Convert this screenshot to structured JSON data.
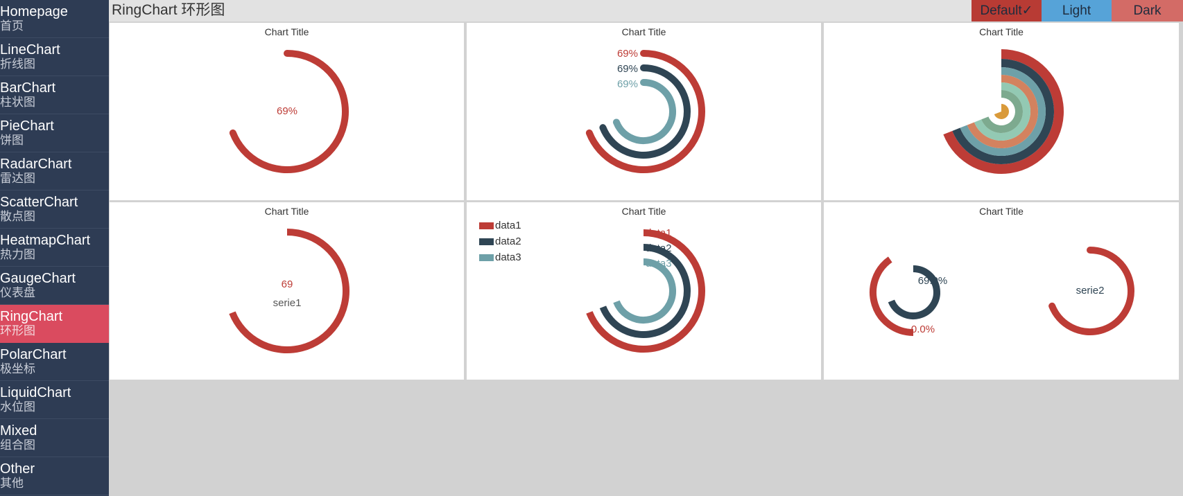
{
  "sidebar": {
    "items": [
      {
        "en": "Homepage",
        "cn": "首页"
      },
      {
        "en": "LineChart",
        "cn": "折线图"
      },
      {
        "en": "BarChart",
        "cn": "柱状图"
      },
      {
        "en": "PieChart",
        "cn": "饼图"
      },
      {
        "en": "RadarChart",
        "cn": "雷达图"
      },
      {
        "en": "ScatterChart",
        "cn": "散点图"
      },
      {
        "en": "HeatmapChart",
        "cn": "热力图"
      },
      {
        "en": "GaugeChart",
        "cn": "仪表盘"
      },
      {
        "en": "RingChart",
        "cn": "环形图"
      },
      {
        "en": "PolarChart",
        "cn": "极坐标"
      },
      {
        "en": "LiquidChart",
        "cn": "水位图"
      },
      {
        "en": "Mixed",
        "cn": "组合图"
      },
      {
        "en": "Other",
        "cn": "其他"
      }
    ],
    "active_index": 8
  },
  "header": {
    "title": "RingChart 环形图",
    "themes": [
      {
        "label": "Default✓",
        "color": "#b83b34",
        "selected": true
      },
      {
        "label": "Light",
        "color": "#56a3d8",
        "selected": false
      },
      {
        "label": "Dark",
        "color": "#d36b66",
        "selected": false
      }
    ]
  },
  "colors": {
    "red": "#bd3c36",
    "navy": "#2f4554",
    "teal": "#6ea0a8",
    "orange": "#d3825f",
    "mint": "#93c9b3",
    "sage": "#7daa8f",
    "gold": "#d99a3a"
  },
  "chart_data": [
    {
      "type": "ring",
      "title": "Chart Title",
      "series": [
        {
          "value": 69,
          "max": 100
        }
      ],
      "center_label": "69%"
    },
    {
      "type": "ring",
      "title": "Chart Title",
      "series": [
        {
          "value": 69,
          "max": 100,
          "label": "69%"
        },
        {
          "value": 69,
          "max": 100,
          "label": "69%"
        },
        {
          "value": 69,
          "max": 100,
          "label": "69%"
        }
      ]
    },
    {
      "type": "ring",
      "title": "Chart Title",
      "series": [
        {
          "value": 69,
          "max": 100
        },
        {
          "value": 69,
          "max": 100
        },
        {
          "value": 69,
          "max": 100
        },
        {
          "value": 69,
          "max": 100
        },
        {
          "value": 69,
          "max": 100
        },
        {
          "value": 69,
          "max": 100
        },
        {
          "value": 69,
          "max": 100
        }
      ]
    },
    {
      "type": "ring",
      "title": "Chart Title",
      "series": [
        {
          "name": "serie1",
          "value": 69,
          "max": 100
        }
      ],
      "center_value": "69",
      "center_name": "serie1"
    },
    {
      "type": "ring",
      "title": "Chart Title",
      "legend": [
        "data1",
        "data2",
        "data3"
      ],
      "series": [
        {
          "name": "data1",
          "value": 69,
          "max": 100
        },
        {
          "name": "data2",
          "value": 69,
          "max": 100
        },
        {
          "name": "data3",
          "value": 69,
          "max": 100
        }
      ]
    },
    {
      "type": "ring",
      "title": "Chart Title",
      "rings": [
        {
          "value": 69,
          "max": 100,
          "label": "69.0%"
        },
        {
          "value": 0,
          "max": 100,
          "label": "0.0%"
        },
        {
          "name": "serie2",
          "value": 69,
          "max": 100,
          "label": "serie2"
        }
      ]
    }
  ]
}
